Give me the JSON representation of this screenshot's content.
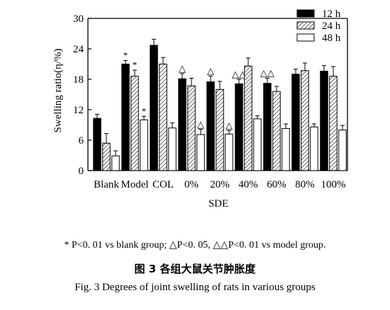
{
  "chart_data": {
    "type": "bar",
    "categories": [
      "Blank",
      "Model",
      "COL",
      "0%",
      "20%",
      "40%",
      "60%",
      "80%",
      "100%"
    ],
    "xlabel": "SDE",
    "ylabel": "Swelling ratio(η/%)",
    "ylim": [
      0,
      30
    ],
    "yticks": [
      "0",
      "6",
      "12",
      "18",
      "24",
      "30"
    ],
    "legend_position": "top-right",
    "grid": false,
    "series": [
      {
        "name": "12 h",
        "fill": "solid-black",
        "values": [
          10.3,
          21.0,
          24.7,
          18.1,
          17.5,
          17.1,
          17.2,
          19.0,
          19.6
        ],
        "errors": [
          0.8,
          0.7,
          1.2,
          1.0,
          1.1,
          0.9,
          1.0,
          1.0,
          1.1
        ],
        "marks": [
          "",
          "*",
          "",
          "△",
          "△",
          "△△",
          "△△",
          "",
          ""
        ]
      },
      {
        "name": "24 h",
        "fill": "hatched",
        "values": [
          5.4,
          18.6,
          21.0,
          16.7,
          16.0,
          20.6,
          15.6,
          19.7,
          18.6
        ],
        "errors": [
          1.9,
          1.2,
          1.3,
          1.5,
          1.6,
          1.6,
          1.0,
          1.5,
          1.9
        ],
        "marks": [
          "",
          "*",
          "",
          "",
          "",
          "",
          "",
          "",
          ""
        ]
      },
      {
        "name": "48 h",
        "fill": "white",
        "values": [
          2.9,
          10.0,
          8.4,
          7.1,
          7.2,
          10.2,
          8.3,
          8.6,
          8.0
        ],
        "errors": [
          1.0,
          0.7,
          1.0,
          1.0,
          0.7,
          0.6,
          0.9,
          0.6,
          0.9
        ],
        "marks": [
          "",
          "*",
          "",
          "△",
          "△",
          "",
          "",
          "",
          ""
        ]
      }
    ]
  },
  "footnote": "* P<0. 01 vs blank group; △P<0. 05, △△P<0. 01 vs model group.",
  "caption_zh": "图 3    各组大鼠关节肿胀度",
  "caption_en": "Fig. 3    Degrees of joint swelling of rats in various groups"
}
